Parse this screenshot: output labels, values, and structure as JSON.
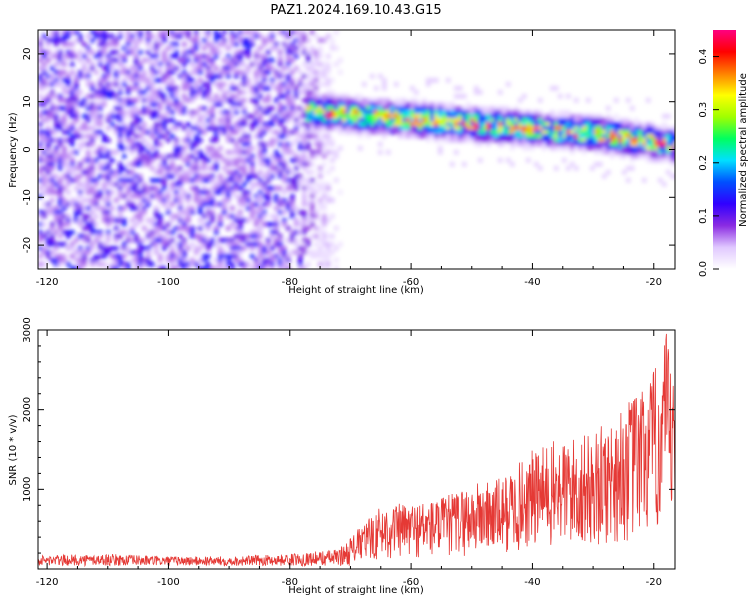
{
  "figure_title": "PAZ1.2024.169.10.43.G15",
  "chart_data": [
    {
      "type": "heatmap",
      "title": "",
      "xlabel": "Height of straight line (km)",
      "ylabel": "Frequency (Hz)",
      "xlim": [
        -121.5,
        -16.5
      ],
      "ylim": [
        -25,
        25
      ],
      "x_ticks": [
        -120,
        -100,
        -80,
        -60,
        -40,
        -20
      ],
      "y_ticks": [
        -20,
        -10,
        0,
        10,
        20
      ],
      "colorbar": {
        "label": "Normalized spectral amplitude",
        "range": [
          0,
          0.45
        ],
        "ticks": [
          0.0,
          0.1,
          0.2,
          0.3,
          0.4
        ],
        "colors": [
          "#ffffff",
          "#e0c8ff",
          "#8a2be2",
          "#3000ff",
          "#0050ff",
          "#00e0ff",
          "#00ff60",
          "#a0ff00",
          "#ffff00",
          "#ff8000",
          "#ff0000",
          "#ff0080"
        ]
      },
      "regions": [
        {
          "name_hint": "noise",
          "x_range": [
            -121.5,
            -70
          ],
          "y_range": [
            -25,
            25
          ],
          "level": 0.06
        },
        {
          "name_hint": "signal",
          "x_range": [
            -77,
            -16.5
          ],
          "center_freq_start": 8,
          "center_freq_end": 2,
          "level": 0.3
        }
      ]
    },
    {
      "type": "line",
      "title": "",
      "xlabel": "Height of straight line (km)",
      "ylabel": "SNR (10 * v/v)",
      "xlim": [
        -121.5,
        -16.5
      ],
      "ylim": [
        0,
        3000
      ],
      "x_ticks": [
        -120,
        -100,
        -80,
        -60,
        -40,
        -20
      ],
      "y_ticks": [
        1000,
        2000,
        3000
      ],
      "color": "#e53935",
      "envelope": {
        "x": [
          -121.5,
          -110,
          -100,
          -90,
          -80,
          -72,
          -68,
          -65,
          -60,
          -55,
          -50,
          -45,
          -40,
          -35,
          -30,
          -25,
          -20,
          -18,
          -16.5
        ],
        "y_max": [
          170,
          190,
          160,
          160,
          190,
          250,
          560,
          800,
          840,
          900,
          1080,
          1150,
          1500,
          1650,
          1700,
          2050,
          2500,
          3000,
          2300
        ]
      }
    }
  ]
}
